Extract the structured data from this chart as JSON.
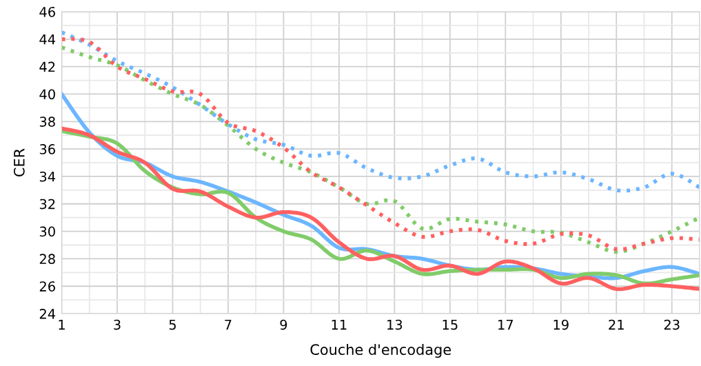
{
  "chart_data": {
    "type": "line",
    "xlabel": "Couche d'encodage",
    "ylabel": "CER",
    "x": [
      1,
      2,
      3,
      4,
      5,
      6,
      7,
      8,
      9,
      10,
      11,
      12,
      13,
      14,
      15,
      16,
      17,
      18,
      19,
      20,
      21,
      22,
      23,
      24
    ],
    "series": [
      {
        "color": "#6cb6ff",
        "line_style": "dotted",
        "values": [
          44.5,
          43.6,
          42.4,
          41.5,
          40.5,
          39.2,
          37.8,
          36.7,
          36.3,
          35.5,
          35.7,
          34.6,
          33.9,
          34.0,
          34.8,
          35.3,
          34.3,
          34.0,
          34.3,
          33.8,
          33.0,
          33.2,
          34.2,
          33.2
        ]
      },
      {
        "color": "#80cc6a",
        "line_style": "dotted",
        "values": [
          43.4,
          42.7,
          42.1,
          41.0,
          40.0,
          39.2,
          37.7,
          36.0,
          35.0,
          34.3,
          33.2,
          32.0,
          32.2,
          30.2,
          30.9,
          30.7,
          30.5,
          30.0,
          29.9,
          29.2,
          28.5,
          29.1,
          30.0,
          31.0
        ]
      },
      {
        "color": "#ff6060",
        "line_style": "dotted",
        "values": [
          44.0,
          43.8,
          42.0,
          41.1,
          40.2,
          40.0,
          37.9,
          37.3,
          36.1,
          34.3,
          33.2,
          31.9,
          30.6,
          29.6,
          30.0,
          30.1,
          29.3,
          29.1,
          29.8,
          29.7,
          28.7,
          29.1,
          29.5,
          29.4
        ]
      },
      {
        "color": "#6cb6ff",
        "line_style": "solid",
        "values": [
          40.0,
          37.2,
          35.5,
          35.0,
          34.0,
          33.6,
          32.9,
          32.1,
          31.2,
          30.4,
          28.8,
          28.7,
          28.2,
          28.0,
          27.5,
          27.2,
          27.4,
          27.3,
          26.9,
          26.7,
          26.6,
          27.1,
          27.4,
          26.9
        ]
      },
      {
        "color": "#80cc6a",
        "line_style": "solid",
        "values": [
          37.3,
          36.9,
          36.4,
          34.4,
          33.2,
          32.7,
          32.8,
          31.0,
          30.0,
          29.4,
          28.0,
          28.6,
          27.8,
          26.9,
          27.1,
          27.2,
          27.2,
          27.2,
          26.6,
          26.9,
          26.8,
          26.2,
          26.5,
          26.8
        ]
      },
      {
        "color": "#ff6060",
        "line_style": "solid",
        "values": [
          37.5,
          37.0,
          35.8,
          35.0,
          33.1,
          32.9,
          31.8,
          31.0,
          31.4,
          31.0,
          29.2,
          28.0,
          28.2,
          27.2,
          27.5,
          26.9,
          27.8,
          27.3,
          26.2,
          26.6,
          25.8,
          26.1,
          26.0,
          25.8
        ]
      }
    ],
    "xlim": [
      1,
      24
    ],
    "xticks": [
      1,
      {
        "value": 2,
        "label": null
      },
      3,
      {
        "value": 4,
        "label": null
      },
      5,
      {
        "value": 6,
        "label": null
      },
      7,
      {
        "value": 8,
        "label": null
      },
      9,
      {
        "value": 10,
        "label": null
      },
      11,
      {
        "value": 12,
        "label": null
      },
      13,
      {
        "value": 14,
        "label": null
      },
      15,
      {
        "value": 16,
        "label": null
      },
      17,
      {
        "value": 18,
        "label": null
      },
      19,
      {
        "value": 20,
        "label": null
      },
      21,
      {
        "value": 22,
        "label": null
      },
      23,
      {
        "value": 24,
        "label": null
      }
    ],
    "ylim": [
      24,
      46
    ],
    "yticks": [
      24,
      {
        "value": 25,
        "label": null
      },
      26,
      {
        "value": 27,
        "label": null
      },
      28,
      {
        "value": 29,
        "label": null
      },
      30,
      {
        "value": 31,
        "label": null
      },
      32,
      {
        "value": 33,
        "label": null
      },
      34,
      {
        "value": 35,
        "label": null
      },
      36,
      {
        "value": 37,
        "label": null
      },
      38,
      {
        "value": 39,
        "label": null
      },
      40,
      {
        "value": 41,
        "label": null
      },
      42,
      {
        "value": 43,
        "label": null
      },
      44,
      {
        "value": 45,
        "label": null
      },
      46
    ],
    "grid": true,
    "marker": "none"
  }
}
